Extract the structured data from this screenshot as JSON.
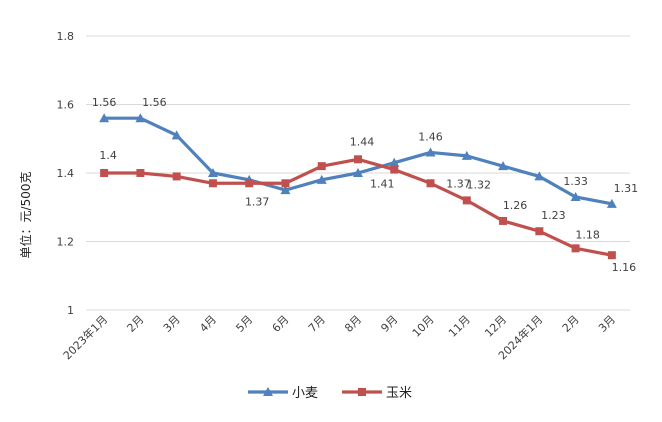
{
  "chart_data": {
    "type": "line",
    "title": "",
    "xlabel": "",
    "ylabel": "单位：元/500克",
    "ylim": [
      1,
      1.8
    ],
    "yticks": [
      "1",
      "1.2",
      "1.4",
      "1.6",
      "1.8"
    ],
    "grid": true,
    "legend_position": "bottom",
    "categories": [
      "2023年1月",
      "2月",
      "3月",
      "4月",
      "5月",
      "6月",
      "7月",
      "8月",
      "9月",
      "10月",
      "11月",
      "12月",
      "2024年1月",
      "2月",
      "3月"
    ],
    "series": [
      {
        "name": "小麦",
        "color": "#4F81BD",
        "marker": "triangle",
        "values": [
          1.56,
          1.56,
          1.51,
          1.4,
          1.38,
          1.35,
          1.38,
          1.4,
          1.43,
          1.46,
          1.45,
          1.42,
          1.39,
          1.33,
          1.31
        ],
        "labels": [
          "1.56",
          "1.56",
          "",
          "",
          "",
          "",
          "",
          "",
          "",
          "1.46",
          "",
          "",
          "",
          "1.33",
          "1.31"
        ]
      },
      {
        "name": "玉米",
        "color": "#C0504D",
        "marker": "square",
        "values": [
          1.4,
          1.4,
          1.39,
          1.37,
          1.37,
          1.37,
          1.42,
          1.44,
          1.41,
          1.37,
          1.32,
          1.26,
          1.23,
          1.18,
          1.16
        ],
        "labels": [
          "1.4",
          "",
          "",
          "",
          "1.37",
          "",
          "",
          "1.44",
          "1.41",
          "1.37",
          "1.32",
          "1.26",
          "1.23",
          "1.18",
          "1.16"
        ]
      }
    ]
  }
}
